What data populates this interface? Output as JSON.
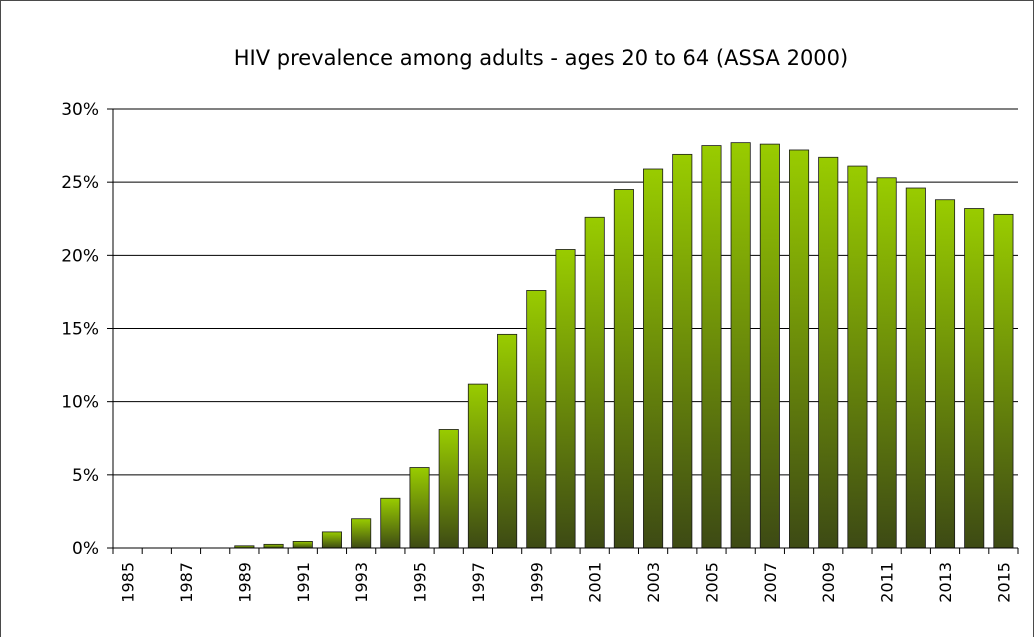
{
  "chart_data": {
    "type": "bar",
    "title": "HIV prevalence among adults - ages 20 to 64 (ASSA 2000)",
    "xlabel": "",
    "ylabel": "",
    "ylim": [
      0,
      30
    ],
    "yticks": [
      "0%",
      "5%",
      "10%",
      "15%",
      "20%",
      "25%",
      "30%"
    ],
    "ytick_values": [
      0,
      5,
      10,
      15,
      20,
      25,
      30
    ],
    "xtick_labels": [
      "1985",
      "1987",
      "1989",
      "1991",
      "1993",
      "1995",
      "1997",
      "1999",
      "2001",
      "2003",
      "2005",
      "2007",
      "2009",
      "2011",
      "2013",
      "2015"
    ],
    "categories": [
      "1985",
      "1986",
      "1987",
      "1988",
      "1989",
      "1990",
      "1991",
      "1992",
      "1993",
      "1994",
      "1995",
      "1996",
      "1997",
      "1998",
      "1999",
      "2000",
      "2001",
      "2002",
      "2003",
      "2004",
      "2005",
      "2006",
      "2007",
      "2008",
      "2009",
      "2010",
      "2011",
      "2012",
      "2013",
      "2014",
      "2015"
    ],
    "values": [
      0,
      0,
      0,
      0,
      0.15,
      0.25,
      0.45,
      1.1,
      2.0,
      3.4,
      5.5,
      8.1,
      11.2,
      14.6,
      17.6,
      20.4,
      22.6,
      24.5,
      25.9,
      26.9,
      27.5,
      27.7,
      27.6,
      27.2,
      26.7,
      26.1,
      25.3,
      24.6,
      23.8,
      23.2,
      22.8
    ],
    "grid": true,
    "legend": "none",
    "colors": {
      "bar_top": "#99cc00",
      "bar_bottom": "#3d4a14",
      "bar_edge": "#1a1a1a",
      "grid": "#000000"
    }
  }
}
